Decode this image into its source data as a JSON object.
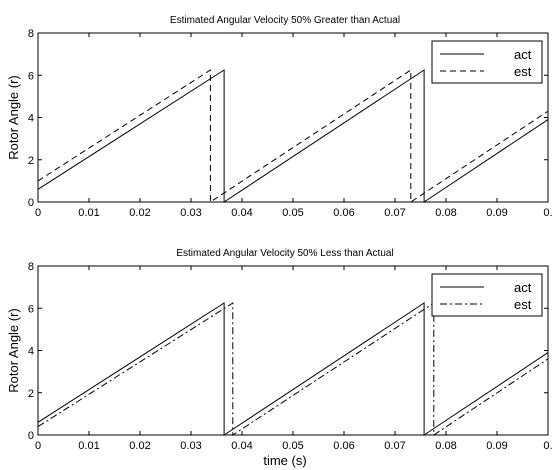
{
  "chart_data": [
    {
      "type": "line",
      "title": "Estimated Angular Velocity 50% Greater than Actual",
      "xlabel": "",
      "ylabel": "Rotor Angle (r)",
      "xlim": [
        0,
        0.1
      ],
      "ylim": [
        0,
        8
      ],
      "xticks": [
        "0",
        "0.01",
        "0.02",
        "0.03",
        "0.04",
        "0.05",
        "0.06",
        "0.07",
        "0.08",
        "0.09",
        "0."
      ],
      "yticks": [
        "0",
        "2",
        "4",
        "6",
        "8"
      ],
      "grid": false,
      "legend": "top-right",
      "series": [
        {
          "name": "act",
          "style": "solid",
          "x": [
            0,
            0.0365,
            0.0365,
            0.0757,
            0.0757,
            0.1
          ],
          "y": [
            0.6,
            6.25,
            0.0,
            6.25,
            0.0,
            3.9
          ]
        },
        {
          "name": "est",
          "style": "dashed",
          "x": [
            0,
            0.0338,
            0.0338,
            0.0731,
            0.0731,
            0.1
          ],
          "y": [
            1.0,
            6.25,
            0.0,
            6.25,
            0.0,
            4.3
          ]
        }
      ]
    },
    {
      "type": "line",
      "title": "Estimated Angular Velocity 50% Less than Actual",
      "xlabel": "time (s)",
      "ylabel": "Rotor Angle (r)",
      "xlim": [
        0,
        0.1
      ],
      "ylim": [
        0,
        8
      ],
      "xticks": [
        "0",
        "0.01",
        "0.02",
        "0.03",
        "0.04",
        "0.05",
        "0.06",
        "0.07",
        "0.08",
        "0.09",
        "0."
      ],
      "yticks": [
        "0",
        "2",
        "4",
        "6",
        "8"
      ],
      "grid": false,
      "legend": "top-right",
      "series": [
        {
          "name": "act",
          "style": "solid",
          "x": [
            0,
            0.0365,
            0.0365,
            0.0757,
            0.0757,
            0.1
          ],
          "y": [
            0.6,
            6.25,
            0.0,
            6.25,
            0.0,
            3.9
          ]
        },
        {
          "name": "est",
          "style": "dashdot",
          "x": [
            0,
            0.0382,
            0.0382,
            0.0776,
            0.0776,
            0.1
          ],
          "y": [
            0.4,
            6.25,
            0.0,
            6.25,
            0.0,
            3.6
          ]
        }
      ]
    }
  ]
}
